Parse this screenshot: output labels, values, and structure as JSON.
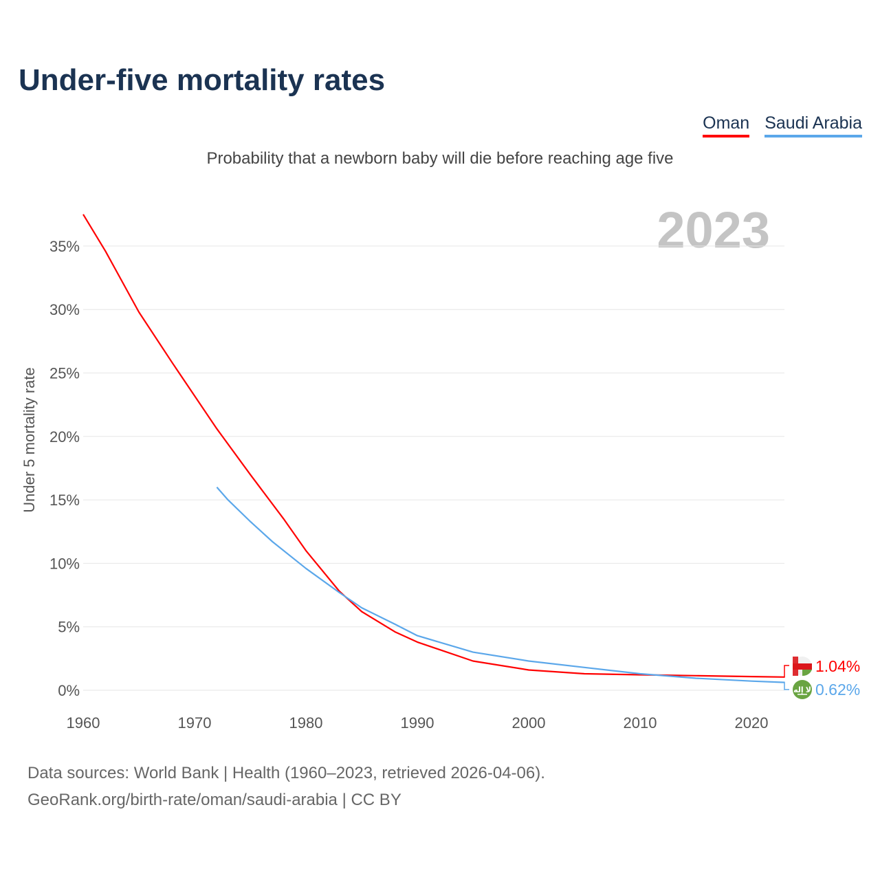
{
  "title": "Under-five mortality rates",
  "subtitle": "Probability that a newborn baby will die before reaching age five",
  "footer": {
    "line1": "Data sources: World Bank | Health (1960–2023, retrieved 2026-04-06).",
    "line2": "GeoRank.org/birth-rate/oman/saudi-arabia | CC BY"
  },
  "chart_data": {
    "type": "line",
    "year_label": "2023",
    "ylabel": "Under 5 mortality rate",
    "xlim": [
      1960,
      2023
    ],
    "ylim": [
      0,
      37.5
    ],
    "xticks": [
      1960,
      1970,
      1980,
      1990,
      2000,
      2010,
      2020
    ],
    "yticks": [
      {
        "v": 0,
        "label": "0%"
      },
      {
        "v": 5,
        "label": "5%"
      },
      {
        "v": 10,
        "label": "10%"
      },
      {
        "v": 15,
        "label": "15%"
      },
      {
        "v": 20,
        "label": "20%"
      },
      {
        "v": 25,
        "label": "25%"
      },
      {
        "v": 30,
        "label": "30%"
      },
      {
        "v": 35,
        "label": "35%"
      }
    ],
    "grid": true,
    "legend": "top-right",
    "series": [
      {
        "name": "Oman",
        "color": "#ff0000",
        "end_label": "1.04%",
        "flag": "oman-flag",
        "x": [
          1960,
          1962,
          1965,
          1968,
          1970,
          1972,
          1975,
          1978,
          1980,
          1983,
          1985,
          1988,
          1990,
          1995,
          2000,
          2005,
          2010,
          2015,
          2020,
          2023
        ],
        "y": [
          37.5,
          34.6,
          29.8,
          25.8,
          23.2,
          20.6,
          17.0,
          13.5,
          11.0,
          7.8,
          6.2,
          4.6,
          3.8,
          2.3,
          1.6,
          1.3,
          1.22,
          1.15,
          1.08,
          1.04
        ]
      },
      {
        "name": "Saudi Arabia",
        "color": "#5ba7ea",
        "end_label": "0.62%",
        "flag": "saudi-arabia-flag",
        "x": [
          1972,
          1973,
          1975,
          1977,
          1980,
          1983,
          1985,
          1988,
          1990,
          1995,
          2000,
          2005,
          2010,
          2015,
          2020,
          2023
        ],
        "y": [
          16.0,
          15.0,
          13.3,
          11.7,
          9.6,
          7.7,
          6.5,
          5.2,
          4.3,
          3.0,
          2.3,
          1.8,
          1.3,
          0.95,
          0.72,
          0.62
        ]
      }
    ]
  }
}
